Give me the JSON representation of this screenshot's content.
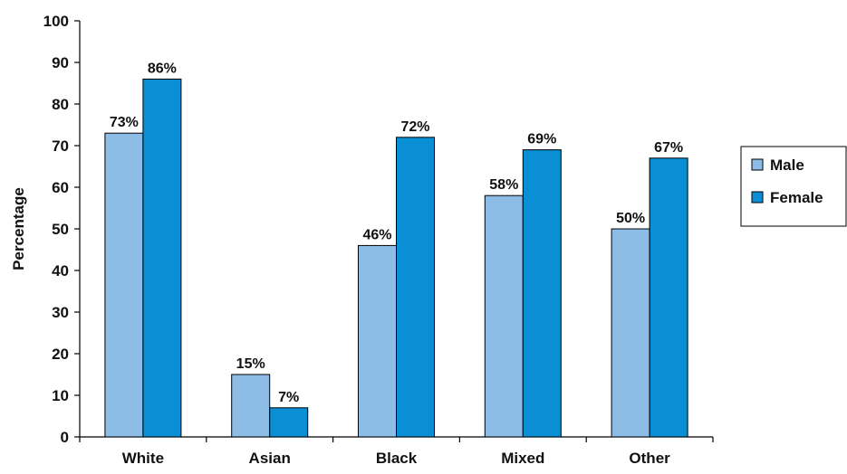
{
  "chart_data": {
    "type": "bar",
    "title": "",
    "xlabel": "",
    "ylabel": "Percentage",
    "ylim": [
      0,
      100
    ],
    "yticks": [
      0,
      10,
      20,
      30,
      40,
      50,
      60,
      70,
      80,
      90,
      100
    ],
    "categories": [
      "White",
      "Asian",
      "Black",
      "Mixed",
      "Other"
    ],
    "series": [
      {
        "name": "Male",
        "color": "#8DBDE6",
        "values": [
          73,
          15,
          46,
          58,
          50
        ],
        "labels": [
          "73%",
          "15%",
          "46%",
          "58%",
          "50%"
        ]
      },
      {
        "name": "Female",
        "color": "#0A8FD4",
        "values": [
          86,
          7,
          72,
          69,
          67
        ],
        "labels": [
          "86%",
          "7%",
          "72%",
          "69%",
          "67%"
        ]
      }
    ],
    "grid": false,
    "legend": "right"
  }
}
